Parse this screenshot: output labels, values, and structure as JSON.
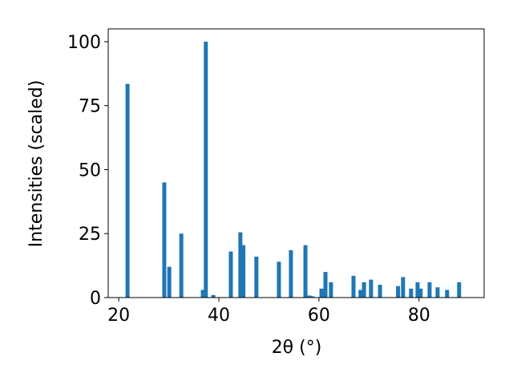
{
  "chart_data": {
    "type": "bar",
    "xlabel": "2θ (°)",
    "ylabel": "Intensities (scaled)",
    "x": [
      21.76,
      29.1,
      30.1,
      32.5,
      36.8,
      37.4,
      38.9,
      42.4,
      44.3,
      44.9,
      47.5,
      52.0,
      54.4,
      57.3,
      58.1,
      58.7,
      60.5,
      61.3,
      62.4,
      66.9,
      68.3,
      69.0,
      70.4,
      72.2,
      75.8,
      76.8,
      78.4,
      79.7,
      80.3,
      82.1,
      83.7,
      85.6,
      88.0
    ],
    "values": [
      83.5,
      45,
      12,
      25,
      3,
      100,
      1,
      18,
      25.5,
      20.5,
      16,
      14,
      18.5,
      20.5,
      0.8,
      0.5,
      3.5,
      10,
      6,
      8.5,
      3,
      6,
      7,
      5,
      4.5,
      8,
      3.5,
      6,
      3.5,
      6,
      4,
      3,
      6
    ],
    "color": "#1f77b4",
    "xlim": [
      17.9,
      93
    ],
    "xticks": [
      20,
      40,
      60,
      80
    ],
    "ylim": [
      0,
      105
    ],
    "yticks": [
      0,
      25,
      50,
      75,
      100
    ],
    "grid": false
  }
}
